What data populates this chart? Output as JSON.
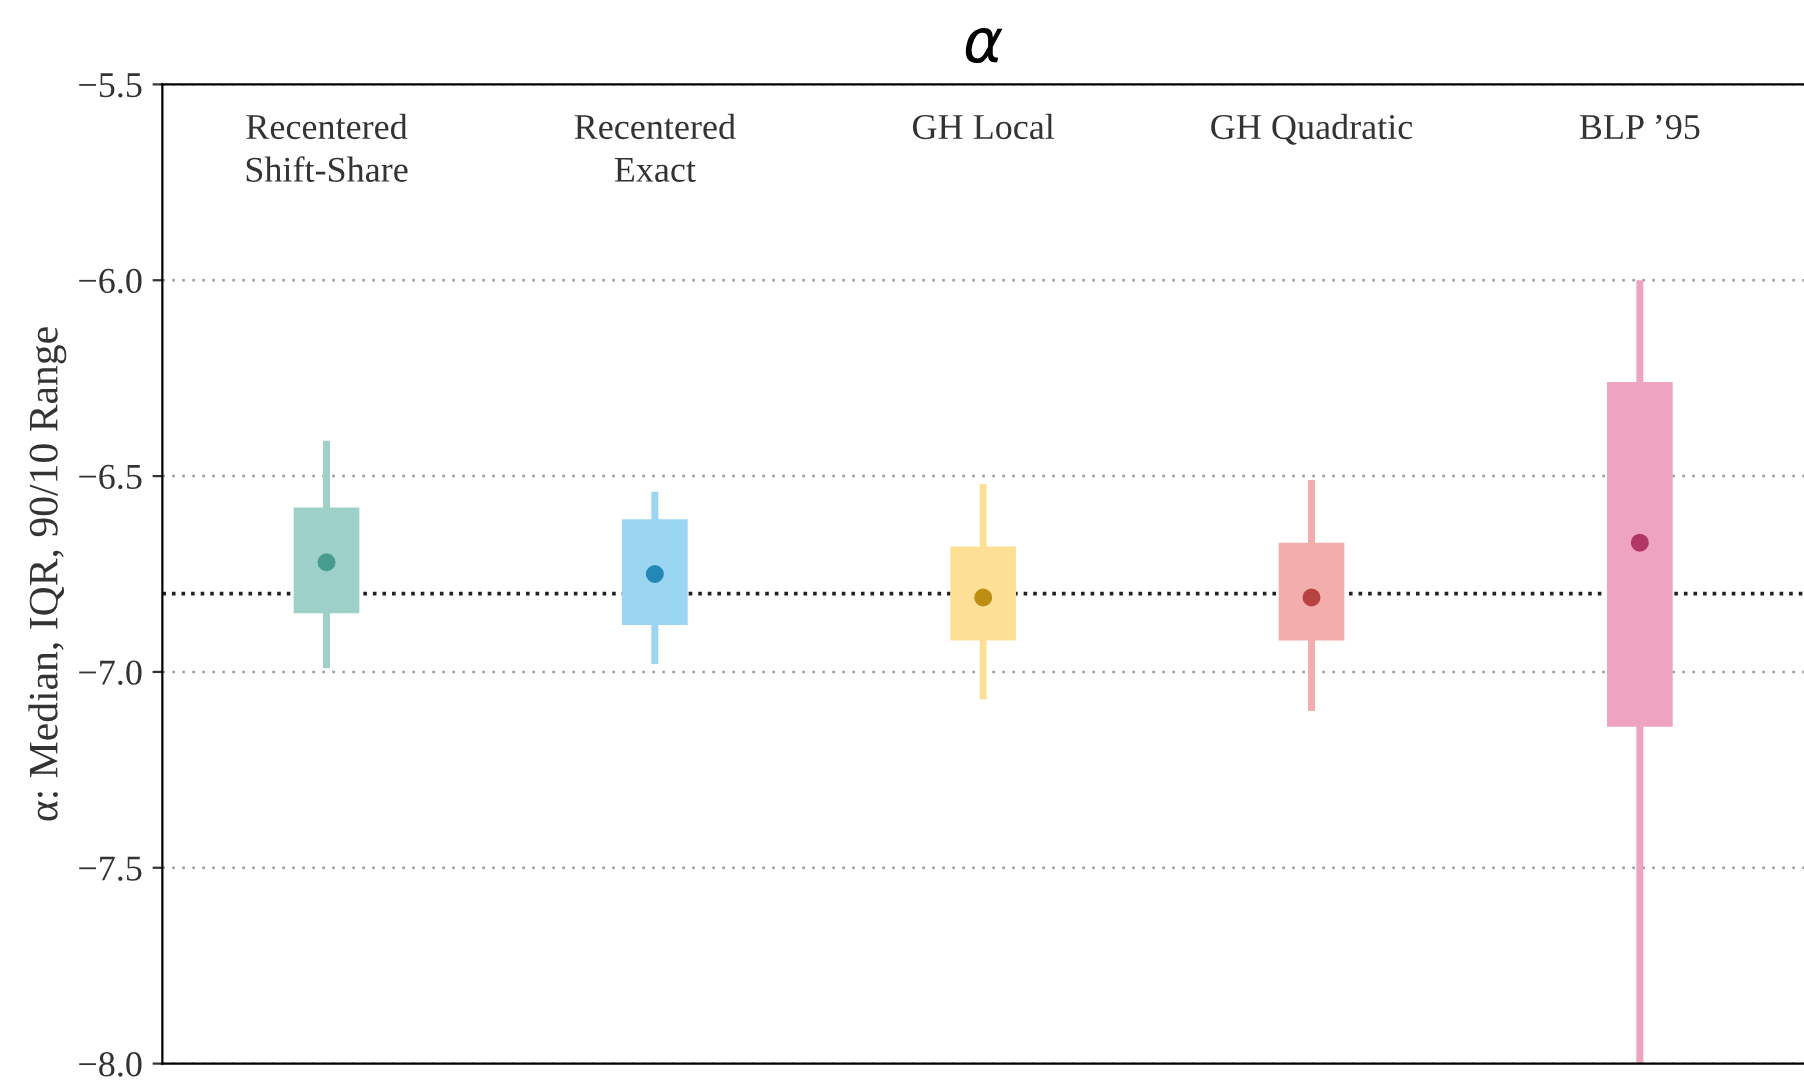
{
  "chart_data": {
    "type": "box",
    "title": "α",
    "ylabel": "α: Median, IQR, 90/10 Range",
    "categories": [
      "Recentered\nShift-Share",
      "Recentered\nExact",
      "GH Local",
      "GH Quadratic",
      "BLP ’95"
    ],
    "boxes": [
      {
        "low": -6.99,
        "q1": -6.85,
        "median": -6.72,
        "q3": -6.58,
        "high": -6.41
      },
      {
        "low": -6.98,
        "q1": -6.88,
        "median": -6.75,
        "q3": -6.61,
        "high": -6.54
      },
      {
        "low": -7.07,
        "q1": -6.92,
        "median": -6.81,
        "q3": -6.68,
        "high": -6.52
      },
      {
        "low": -7.1,
        "q1": -6.92,
        "median": -6.81,
        "q3": -6.67,
        "high": -6.51
      },
      {
        "low": -8.0,
        "q1": -7.14,
        "median": -6.67,
        "q3": -6.26,
        "high": -6.0
      }
    ],
    "colors": [
      "#9dd0c8",
      "#9ad6f2",
      "#fde095",
      "#f4adad",
      "#eea3c0"
    ],
    "ylim": [
      -8.0,
      -5.5
    ],
    "yticks": [
      {
        "value": -8.0,
        "label": "−8.0"
      },
      {
        "value": -7.5,
        "label": "−7.5"
      },
      {
        "value": -7.0,
        "label": "−7.0"
      },
      {
        "value": -6.5,
        "label": "−6.5"
      },
      {
        "value": -6.0,
        "label": "−6.0"
      },
      {
        "value": -5.5,
        "label": "−5.5"
      }
    ],
    "ref_lines": [
      {
        "axis": "y",
        "value": -6.8,
        "line_style": "dotted",
        "color": "#222222"
      }
    ],
    "grid": "y"
  }
}
